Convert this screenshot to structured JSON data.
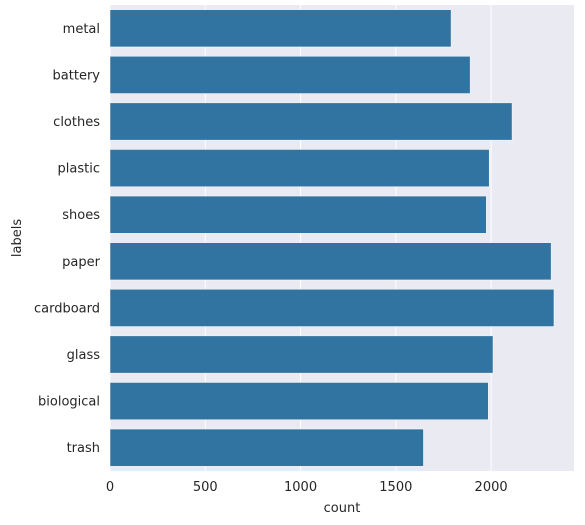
{
  "chart_data": {
    "type": "bar",
    "orientation": "horizontal",
    "categories": [
      "metal",
      "battery",
      "clothes",
      "plastic",
      "shoes",
      "paper",
      "cardboard",
      "glass",
      "biological",
      "trash"
    ],
    "values": [
      1790,
      1890,
      2110,
      1990,
      1975,
      2315,
      2330,
      2010,
      1985,
      1645
    ],
    "xlabel": "count",
    "ylabel": "labels",
    "xlim": [
      0,
      2435
    ],
    "xticks": [
      0,
      500,
      1000,
      1500,
      2000
    ],
    "xtick_labels": [
      "0",
      "500",
      "1000",
      "1500",
      "2000"
    ],
    "grid": true,
    "colors": {
      "bar": "#3274a1",
      "background": "#eaeaf2",
      "grid": "#ffffff"
    }
  }
}
